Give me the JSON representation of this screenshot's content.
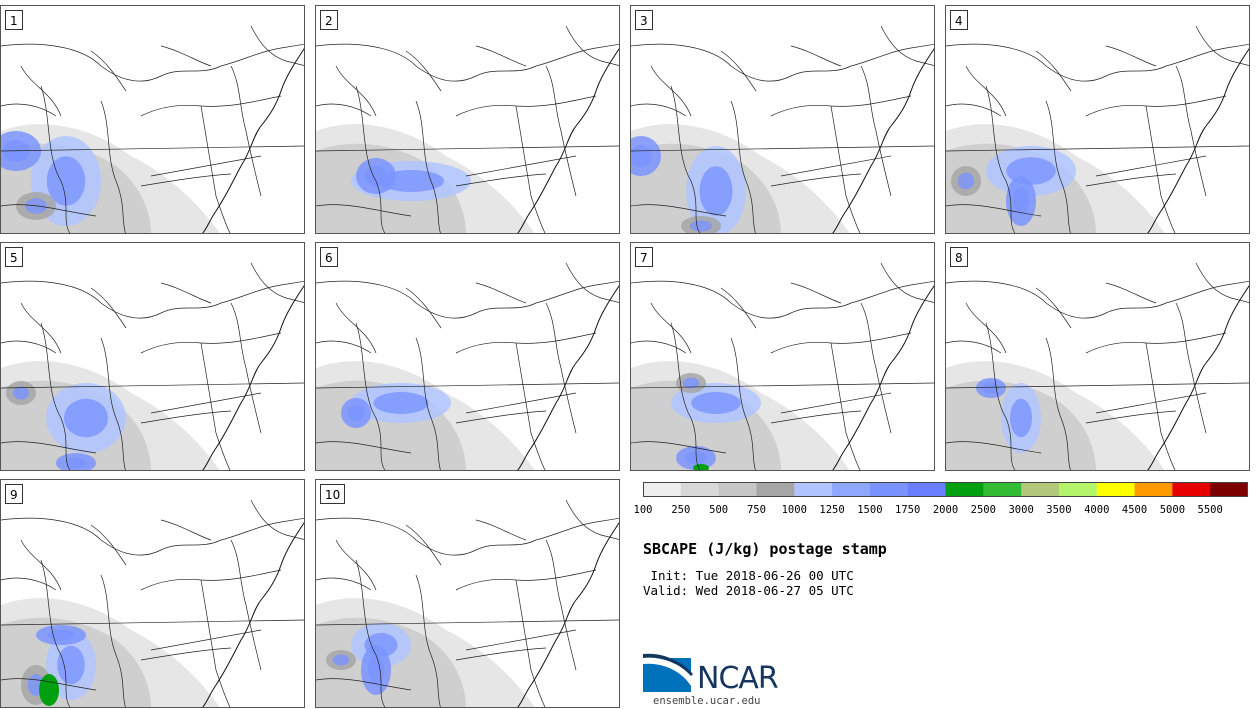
{
  "panels": [
    "1",
    "2",
    "3",
    "4",
    "5",
    "6",
    "7",
    "8",
    "9",
    "10"
  ],
  "colorbar": {
    "colors": [
      "#eeeeee",
      "#d8d8d8",
      "#c6c6c6",
      "#a6a6a6",
      "#b0c4ff",
      "#8fa8ff",
      "#7a94ff",
      "#6a7fff",
      "#00a010",
      "#33bb33",
      "#b2c87a",
      "#b4f46a",
      "#ffff00",
      "#ff9900",
      "#e60000",
      "#7d0000"
    ],
    "ticks": [
      "100",
      "250",
      "500",
      "750",
      "1000",
      "1250",
      "1500",
      "1750",
      "2000",
      "2500",
      "3000",
      "3500",
      "4000",
      "4500",
      "5000",
      "5500"
    ]
  },
  "title": "SBCAPE (J/kg) postage stamp",
  "init": " Init: Tue 2018-06-26 00 UTC",
  "valid": "Valid: Wed 2018-06-27 05 UTC",
  "logo": {
    "text": "NCAR",
    "site": "ensemble.ucar.edu",
    "blue": "#0072bc",
    "navy": "#17365f"
  },
  "cape_fields": [
    [
      [
        65,
        175,
        35,
        45
      ],
      [
        15,
        145,
        25,
        20
      ],
      [
        35,
        200,
        20,
        14
      ]
    ],
    [
      [
        95,
        175,
        60,
        20
      ],
      [
        60,
        170,
        20,
        18
      ],
      [
        380,
        205,
        15,
        20
      ]
    ],
    [
      [
        85,
        185,
        30,
        45
      ],
      [
        10,
        150,
        20,
        20
      ],
      [
        70,
        220,
        20,
        10
      ]
    ],
    [
      [
        85,
        165,
        45,
        25
      ],
      [
        75,
        195,
        15,
        25
      ],
      [
        20,
        175,
        15,
        15
      ]
    ],
    [
      [
        85,
        175,
        40,
        35
      ],
      [
        75,
        220,
        20,
        10
      ],
      [
        20,
        150,
        15,
        12
      ]
    ],
    [
      [
        85,
        160,
        50,
        20
      ],
      [
        40,
        170,
        15,
        15
      ]
    ],
    [
      [
        85,
        160,
        45,
        20
      ],
      [
        65,
        215,
        20,
        12
      ],
      [
        60,
        140,
        15,
        10
      ]
    ],
    [
      [
        75,
        175,
        20,
        35
      ],
      [
        45,
        145,
        15,
        10
      ]
    ],
    [
      [
        70,
        185,
        25,
        35
      ],
      [
        60,
        155,
        25,
        10
      ],
      [
        35,
        205,
        15,
        20
      ]
    ],
    [
      [
        65,
        165,
        30,
        22
      ],
      [
        60,
        190,
        15,
        25
      ],
      [
        25,
        180,
        15,
        10
      ]
    ]
  ],
  "high_cape_cells": [
    {
      "panel": 7,
      "cx": 70,
      "cy": 225,
      "rx": 8,
      "ry": 4
    },
    {
      "panel": 9,
      "cx": 48,
      "cy": 210,
      "rx": 10,
      "ry": 16
    }
  ]
}
